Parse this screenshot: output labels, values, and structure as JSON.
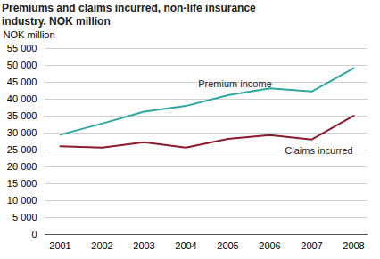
{
  "chart_data": {
    "type": "line",
    "title": "Premiums and claims incurred, non-life insurance industry. NOK million",
    "y_label": "NOK million",
    "categories": [
      "2001",
      "2002",
      "2003",
      "2004",
      "2005",
      "2006",
      "2007",
      "2008"
    ],
    "series": [
      {
        "name": "Premium income",
        "color": "#2ea7a0",
        "values": [
          29500,
          32800,
          36300,
          38000,
          41200,
          43200,
          42300,
          49200
        ]
      },
      {
        "name": "Claims incurred",
        "color": "#8c1c2c",
        "values": [
          26100,
          25700,
          27300,
          25700,
          28300,
          29400,
          28100,
          35100
        ]
      }
    ],
    "ylim": [
      0,
      55000
    ],
    "yticks": [
      {
        "value": 0,
        "label": "0"
      },
      {
        "value": 5000,
        "label": "5 000"
      },
      {
        "value": 10000,
        "label": "10 000"
      },
      {
        "value": 15000,
        "label": "15 000"
      },
      {
        "value": 20000,
        "label": "20 000"
      },
      {
        "value": 25000,
        "label": "25 000"
      },
      {
        "value": 30000,
        "label": "30 000"
      },
      {
        "value": 35000,
        "label": "35 000"
      },
      {
        "value": 40000,
        "label": "40 000"
      },
      {
        "value": 45000,
        "label": "45 000"
      },
      {
        "value": 50000,
        "label": "50 000"
      },
      {
        "value": 55000,
        "label": "55 000"
      }
    ],
    "grid": true
  }
}
